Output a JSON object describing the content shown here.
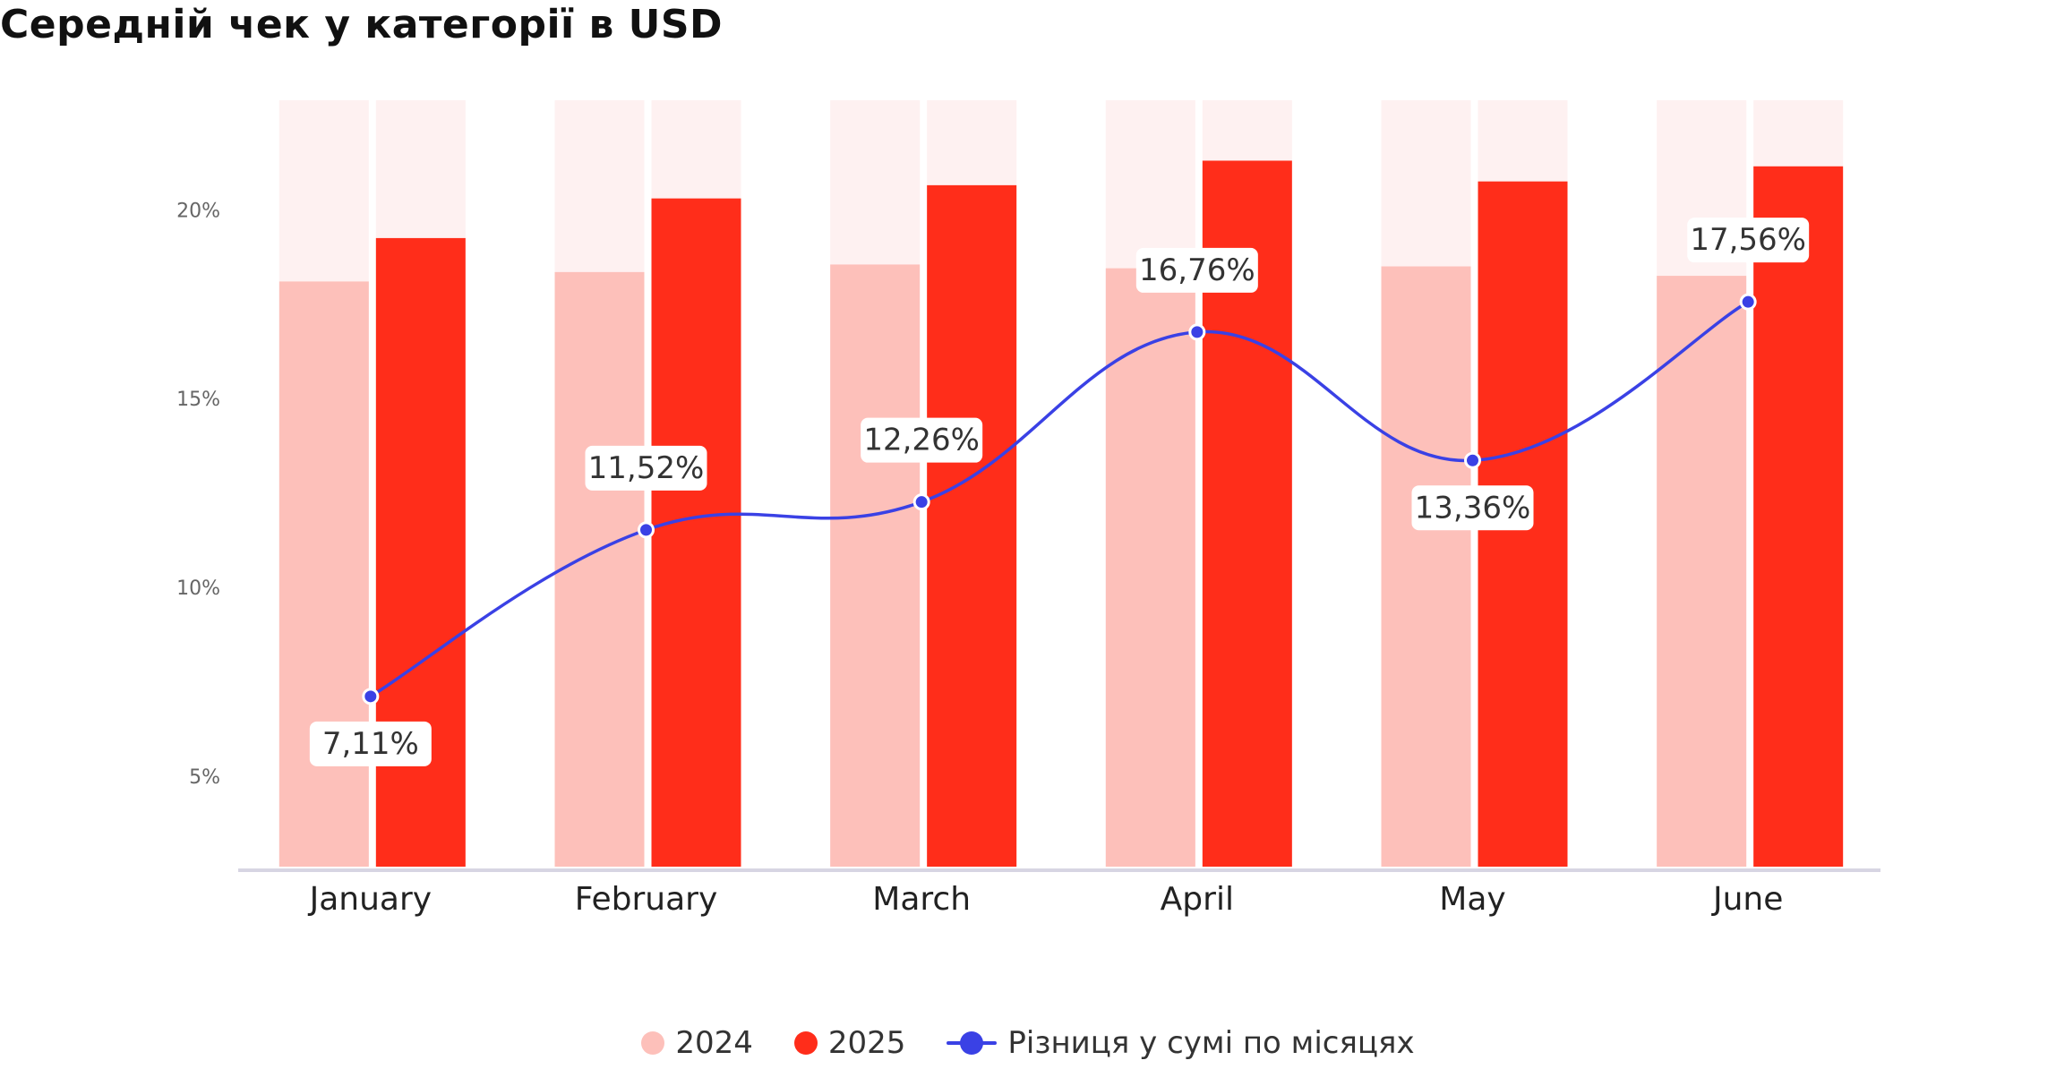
{
  "title": "Середній чек у категорії в USD",
  "colors": {
    "bar_2024": "#FDC0BA",
    "bar_2025": "#FF2D1A",
    "bar_background": "#FEF1F1",
    "line": "#3A41E5",
    "axis": "#D7D5E3",
    "tick_text": "#666666",
    "category_text": "#222222",
    "label_text": "#333333"
  },
  "chart_data": {
    "type": "bar",
    "title": "Середній чек у категорії в USD",
    "xlabel": "",
    "ylabel": "",
    "categories": [
      "January",
      "February",
      "March",
      "April",
      "May",
      "June"
    ],
    "y_ticks": [
      {
        "value": 5,
        "label": "5%"
      },
      {
        "value": 10,
        "label": "10%"
      },
      {
        "value": 15,
        "label": "15%"
      },
      {
        "value": 20,
        "label": "20%"
      }
    ],
    "ylim": [
      2.6,
      22.9
    ],
    "grid": false,
    "legend_position": "bottom-center",
    "series": [
      {
        "name": "2024",
        "type": "bar",
        "values": [
          18.1,
          18.35,
          18.55,
          18.45,
          18.5,
          18.25
        ]
      },
      {
        "name": "2025",
        "type": "bar",
        "values": [
          19.25,
          20.3,
          20.65,
          21.3,
          20.75,
          21.15
        ]
      },
      {
        "name": "Різниця у сумі по місяцях",
        "type": "line",
        "values": [
          7.11,
          11.52,
          12.26,
          16.76,
          13.36,
          17.56
        ],
        "labels": [
          "7,11%",
          "11,52%",
          "12,26%",
          "16,76%",
          "13,36%",
          "17,56%"
        ],
        "label_positions": [
          "below",
          "above",
          "above",
          "above",
          "below",
          "above"
        ]
      }
    ]
  },
  "legend": {
    "items": [
      {
        "label": "2024",
        "marker": "dot",
        "color": "#FDC0BA"
      },
      {
        "label": "2025",
        "marker": "dot",
        "color": "#FF2D1A"
      },
      {
        "label": "Різниця у сумі по місяцях",
        "marker": "line-dot",
        "color": "#3A41E5"
      }
    ]
  }
}
